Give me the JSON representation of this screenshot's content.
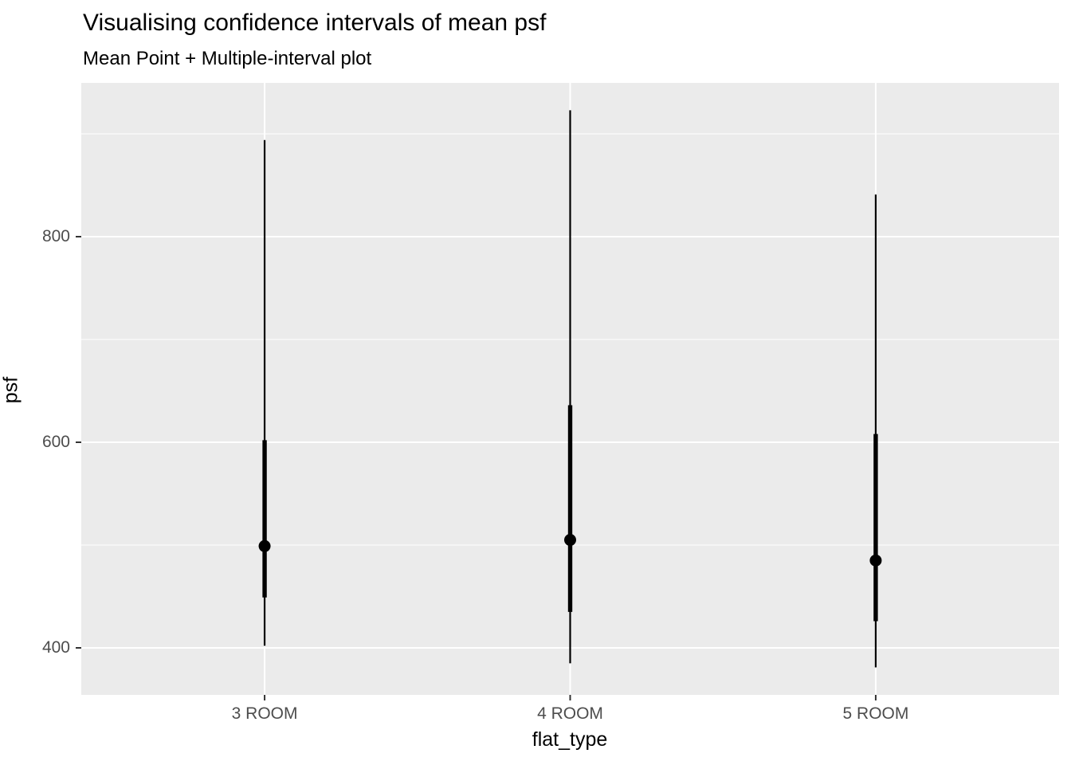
{
  "chart_data": {
    "type": "pointinterval",
    "title": "Visualising confidence intervals of mean psf",
    "subtitle": "Mean Point + Multiple-interval plot",
    "xlabel": "flat_type",
    "ylabel": "psf",
    "categories": [
      "3 ROOM",
      "4 ROOM",
      "5 ROOM"
    ],
    "y_ticks": [
      400,
      600,
      800
    ],
    "y_tick_labels": [
      "400",
      "600",
      "800"
    ],
    "y_minor_gridlines": [
      500,
      700,
      900
    ],
    "ylim": [
      354,
      950
    ],
    "grid": true,
    "legend_position": "none",
    "series": [
      {
        "category": "3 ROOM",
        "mean": 499,
        "interval_thick": [
          449,
          602
        ],
        "interval_thin": [
          402,
          894
        ]
      },
      {
        "category": "4 ROOM",
        "mean": 505,
        "interval_thick": [
          435,
          636
        ],
        "interval_thin": [
          385,
          923
        ]
      },
      {
        "category": "5 ROOM",
        "mean": 485,
        "interval_thick": [
          426,
          608
        ],
        "interval_thin": [
          381,
          841
        ]
      }
    ],
    "colors": {
      "panel_background": "#EBEBEB",
      "gridline_major": "#FFFFFF",
      "gridline_minor": "#FFFFFF",
      "interval": "#000000",
      "point": "#000000",
      "tick_mark": "#333333",
      "tick_label": "#4D4D4D",
      "title_text": "#000000"
    }
  }
}
